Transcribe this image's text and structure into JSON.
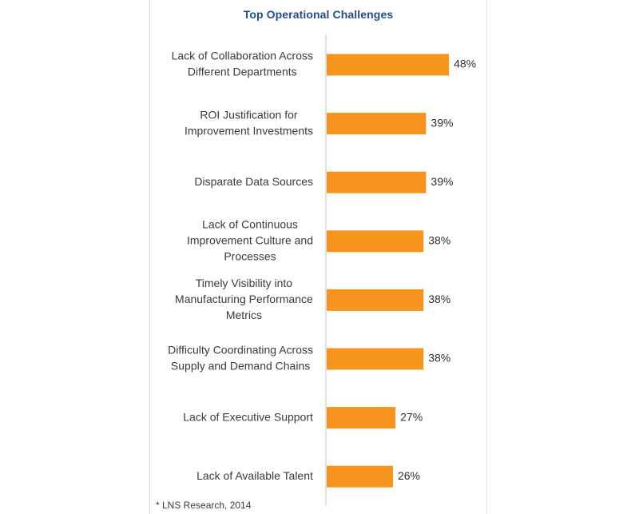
{
  "chart_data": {
    "type": "bar",
    "orientation": "horizontal",
    "title": "Top Operational Challenges",
    "xlabel": "",
    "ylabel": "",
    "categories": [
      [
        "Lack of Collaboration Across",
        "Different Departments"
      ],
      [
        "ROI Justification for",
        "Improvement Investments"
      ],
      [
        "Disparate Data Sources"
      ],
      [
        "Lack of Continuous",
        "Improvement Culture and",
        "Processes"
      ],
      [
        "Timely Visibility into",
        "Manufacturing Performance",
        "Metrics"
      ],
      [
        "Difficulty Coordinating Across",
        "Supply and Demand Chains"
      ],
      [
        "Lack of Executive Support"
      ],
      [
        "Lack of Available Talent"
      ]
    ],
    "values": [
      48,
      39,
      39,
      38,
      38,
      38,
      27,
      26
    ],
    "value_labels": [
      "48%",
      "39%",
      "39%",
      "38%",
      "38%",
      "38%",
      "27%",
      "26%"
    ],
    "xlim": [
      0,
      100
    ],
    "grid": false,
    "legend": "none",
    "bar_color": "#f7941d",
    "axis_color": "#bfbfbf"
  },
  "footnote": "* LNS Research, 2014"
}
